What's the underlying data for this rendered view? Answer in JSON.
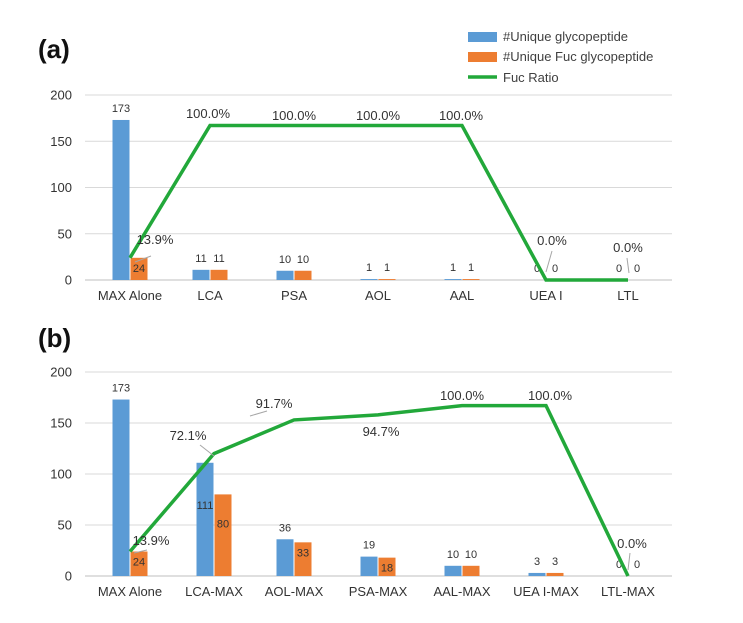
{
  "colors": {
    "series_blue": "#5b9bd5",
    "series_orange": "#ed7d31",
    "ratio_green": "#22a83a",
    "leader_gray": "#a6a6a6"
  },
  "legend": {
    "items": [
      {
        "label": "#Unique glycopeptide",
        "kind": "bar",
        "color": "#5b9bd5"
      },
      {
        "label": "#Unique Fuc glycopeptide",
        "kind": "bar",
        "color": "#ed7d31"
      },
      {
        "label": "Fuc Ratio",
        "kind": "line",
        "color": "#22a83a"
      }
    ]
  },
  "chart_data": [
    {
      "panel_label": "(a)",
      "type": "bar",
      "categories": [
        "MAX Alone",
        "LCA",
        "PSA",
        "AOL",
        "AAL",
        "UEA I",
        "LTL"
      ],
      "ylim": [
        0,
        200
      ],
      "yticks": [
        "0",
        "50",
        "100",
        "150",
        "200"
      ],
      "series": [
        {
          "name": "#Unique glycopeptide",
          "values": [
            173,
            11,
            10,
            1,
            1,
            0,
            0
          ],
          "labels": [
            "173",
            "11",
            "10",
            "1",
            "1",
            "0",
            "0"
          ]
        },
        {
          "name": "#Unique Fuc glycopeptide",
          "values": [
            24,
            11,
            10,
            1,
            1,
            0,
            0
          ],
          "labels": [
            "24",
            "11",
            "10",
            "1",
            "1",
            "0",
            "0"
          ]
        }
      ],
      "line": {
        "name": "Fuc Ratio",
        "values_on_left_axis": [
          24,
          167,
          167,
          167,
          167,
          0,
          0
        ],
        "labels": [
          "13.9%",
          "100.0%",
          "100.0%",
          "100.0%",
          "100.0%",
          "0.0%",
          "0.0%"
        ],
        "label_index": [
          0,
          1,
          2,
          3,
          4,
          5,
          6
        ]
      }
    },
    {
      "panel_label": "(b)",
      "type": "bar",
      "categories": [
        "MAX Alone",
        "LCA-MAX",
        "AOL-MAX",
        "PSA-MAX",
        "AAL-MAX",
        "UEA I-MAX",
        "LTL-MAX"
      ],
      "ylim": [
        0,
        200
      ],
      "yticks": [
        "0",
        "50",
        "100",
        "150",
        "200"
      ],
      "series": [
        {
          "name": "#Unique glycopeptide",
          "values": [
            173,
            111,
            36,
            19,
            10,
            3,
            0
          ],
          "labels": [
            "173",
            "111",
            "36",
            "19",
            "10",
            "3",
            "0"
          ]
        },
        {
          "name": "#Unique Fuc glycopeptide",
          "values": [
            24,
            80,
            33,
            18,
            10,
            3,
            0
          ],
          "labels": [
            "24",
            "80",
            "33",
            "18",
            "10",
            "3",
            "0"
          ]
        }
      ],
      "line": {
        "name": "Fuc Ratio",
        "values_on_left_axis": [
          24,
          120,
          153,
          158,
          167,
          167,
          0
        ],
        "labels": [
          "13.9%",
          "72.1%",
          "91.7%",
          "94.7%",
          "100.0%",
          "100.0%",
          "0.0%"
        ]
      }
    }
  ]
}
